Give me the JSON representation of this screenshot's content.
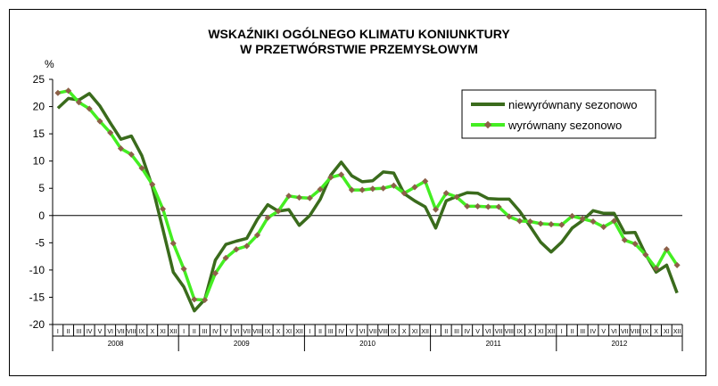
{
  "chart_data": {
    "type": "line",
    "title_line1": "WSKAŹNIKI OGÓLNEGO KLIMATU KONIUNKTURY",
    "title_line2": "W PRZETWÓRSTWIE PRZEMYSŁOWYM",
    "ylabel": "%",
    "ylim": [
      -20,
      25
    ],
    "yticks": [
      25,
      20,
      15,
      10,
      5,
      0,
      -5,
      -10,
      -15,
      -20
    ],
    "months": [
      "I",
      "II",
      "III",
      "IV",
      "V",
      "VI",
      "VII",
      "VIII",
      "IX",
      "X",
      "XI",
      "XII"
    ],
    "years": [
      "2008",
      "2009",
      "2010",
      "2011",
      "2012"
    ],
    "grid": false,
    "legend_position": "top-right",
    "series": [
      {
        "name": "niewyrównany sezonowo",
        "color": "#3a6b1c",
        "values": [
          19.7,
          21.5,
          21.2,
          22.4,
          20.1,
          17.0,
          14.0,
          14.6,
          11.0,
          5.3,
          -2.5,
          -10.4,
          -13.1,
          -17.5,
          -15.4,
          -8.2,
          -5.3,
          -4.7,
          -4.2,
          -0.7,
          2.0,
          0.8,
          1.1,
          -1.8,
          0.0,
          3.0,
          7.4,
          9.8,
          7.3,
          6.2,
          6.4,
          8.0,
          7.8,
          4.0,
          2.7,
          1.6,
          -2.3,
          2.7,
          3.5,
          4.2,
          4.1,
          3.1,
          3.0,
          3.0,
          0.8,
          -2.0,
          -4.9,
          -6.7,
          -4.9,
          -2.3,
          -0.9,
          0.9,
          0.4,
          0.4,
          -3.2,
          -3.1,
          -7.1,
          -10.4,
          -9.1,
          -14.2
        ]
      },
      {
        "name": "wyrównany sezonowo",
        "color": "#44ee22",
        "marker_color": "#8c6048",
        "values": [
          22.5,
          22.9,
          20.8,
          19.6,
          17.3,
          15.2,
          12.3,
          11.2,
          8.7,
          5.7,
          1.2,
          -5.1,
          -9.8,
          -15.4,
          -15.5,
          -10.6,
          -7.8,
          -6.2,
          -5.6,
          -3.6,
          -0.4,
          0.8,
          3.6,
          3.3,
          3.2,
          4.8,
          7.0,
          7.5,
          4.7,
          4.7,
          4.9,
          5.0,
          5.5,
          4.1,
          5.2,
          6.3,
          1.1,
          4.1,
          3.4,
          1.7,
          1.7,
          1.6,
          1.6,
          -0.2,
          -1.0,
          -1.1,
          -1.5,
          -1.6,
          -1.7,
          -0.1,
          -0.6,
          -1.1,
          -2.1,
          -1.0,
          -4.5,
          -5.2,
          -7.2,
          -9.7,
          -6.2,
          -9.1
        ]
      }
    ]
  }
}
